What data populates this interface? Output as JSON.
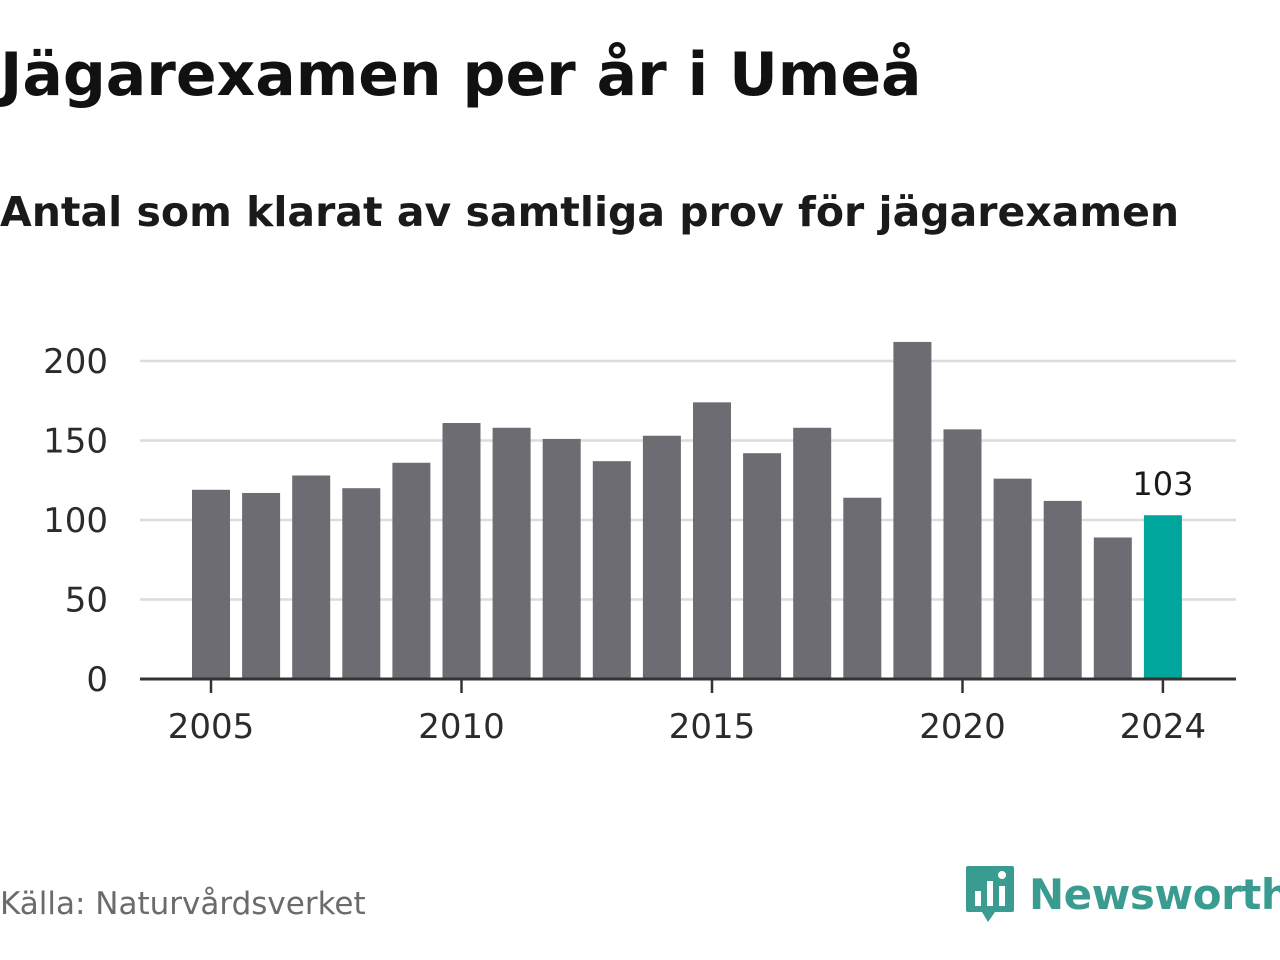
{
  "header": {
    "title": "Jägarexamen per år i Umeå",
    "subtitle": "Antal som klarat av samtliga prov för jägarexamen"
  },
  "footer": {
    "source": "Källa: Naturvårdsverket",
    "brand": "Newsworthy",
    "brand_icon": "bar-chart-speech-bubble-icon"
  },
  "colors": {
    "bar": "#6d6c72",
    "highlight": "#00a59b",
    "grid": "#dcdcdc",
    "axis": "#333333",
    "brand": "#3a9c91"
  },
  "chart_data": {
    "type": "bar",
    "x": [
      2005,
      2006,
      2007,
      2008,
      2009,
      2010,
      2011,
      2012,
      2013,
      2014,
      2015,
      2016,
      2017,
      2018,
      2019,
      2020,
      2021,
      2022,
      2023,
      2024
    ],
    "values": [
      119,
      117,
      128,
      120,
      136,
      161,
      158,
      151,
      137,
      153,
      174,
      142,
      158,
      114,
      212,
      157,
      126,
      112,
      89,
      103
    ],
    "x_tick_labels": [
      "2005",
      "2010",
      "2015",
      "2020",
      "2024"
    ],
    "y_ticks": [
      0,
      50,
      100,
      150,
      200
    ],
    "ylim": [
      0,
      200
    ],
    "highlight": {
      "x": 2024,
      "label": "103"
    },
    "grid": true,
    "xlabel": "",
    "ylabel": ""
  }
}
